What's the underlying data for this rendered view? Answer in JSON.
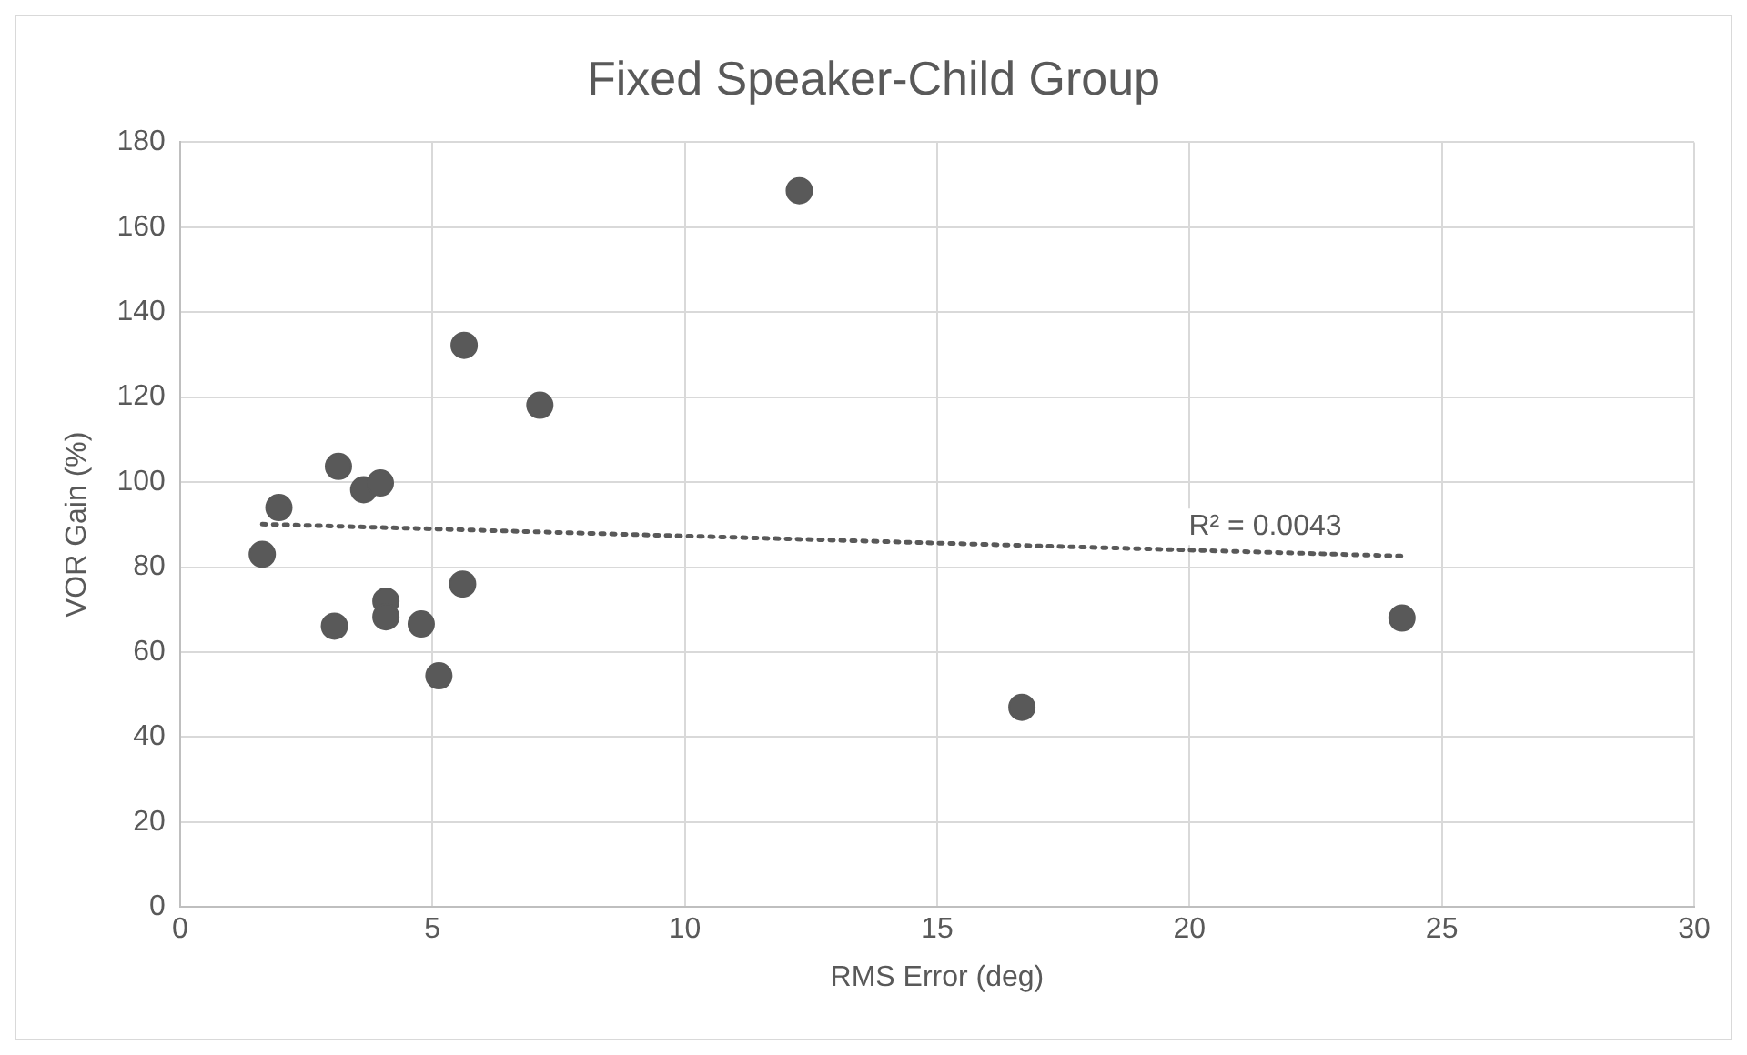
{
  "chart_data": {
    "type": "scatter",
    "title": "Fixed Speaker-Child Group",
    "xlabel": "RMS Error (deg)",
    "ylabel": "VOR Gain (%)",
    "x": [
      1.63,
      1.96,
      3.14,
      3.64,
      3.97,
      3.06,
      4.08,
      4.08,
      4.78,
      5.6,
      5.13,
      5.63,
      7.13,
      12.27,
      16.68,
      24.21
    ],
    "series": [
      {
        "color": "#595959",
        "values": [
          83,
          94,
          103.7,
          98.2,
          99.8,
          66.1,
          72,
          68.3,
          66.6,
          76,
          54.4,
          132.2,
          118.1,
          168.6,
          47,
          68
        ],
        "marker": "circle"
      },
      {
        "type": "line",
        "x": [
          1.63,
          24.21
        ],
        "values": [
          90.1,
          82.6
        ],
        "color": "#595959",
        "line_style": "dotted",
        "marker": "none"
      }
    ],
    "annotations": [
      {
        "text": "R² = 0.0043",
        "x": 21.5,
        "y": 82.6
      }
    ],
    "xlim": [
      0,
      30
    ],
    "xticks": [
      0,
      5,
      10,
      15,
      20,
      25,
      30
    ],
    "ylim": [
      0,
      180
    ],
    "yticks": [
      0,
      20,
      40,
      60,
      80,
      100,
      120,
      140,
      160,
      180
    ],
    "grid": true,
    "legend": false
  }
}
